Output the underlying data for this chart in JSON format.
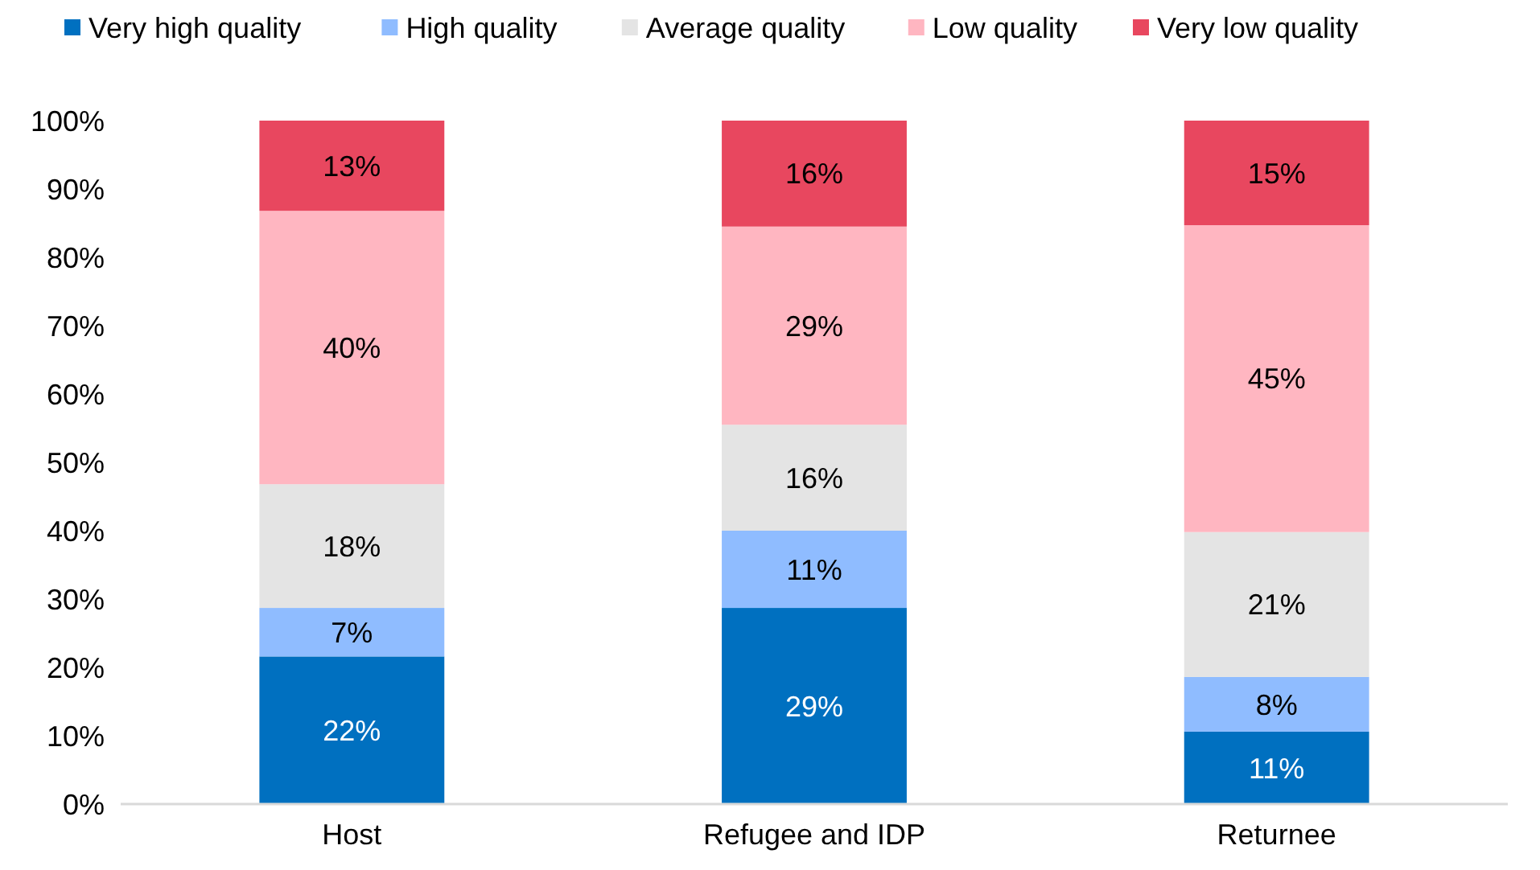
{
  "chart_data": {
    "type": "bar",
    "stacked": true,
    "legend": "top",
    "grid": false,
    "categories": [
      "Host",
      "Refugee and IDP",
      "Returnee"
    ],
    "ylim": [
      0,
      100
    ],
    "yticks": [
      {
        "value": 0,
        "label": "0%"
      },
      {
        "value": 10,
        "label": "10%"
      },
      {
        "value": 20,
        "label": "20%"
      },
      {
        "value": 30,
        "label": "30%"
      },
      {
        "value": 40,
        "label": "40%"
      },
      {
        "value": 50,
        "label": "50%"
      },
      {
        "value": 60,
        "label": "60%"
      },
      {
        "value": 70,
        "label": "70%"
      },
      {
        "value": 80,
        "label": "80%"
      },
      {
        "value": 90,
        "label": "90%"
      },
      {
        "value": 100,
        "label": "100%"
      }
    ],
    "series": [
      {
        "name": "Very high quality",
        "color": "#0070c0",
        "values": [
          21.6,
          28.7,
          10.6
        ],
        "value_labels": [
          "22%",
          "29%",
          "11%"
        ]
      },
      {
        "name": "High quality",
        "color": "#8fbcff",
        "values": [
          7.1,
          11.3,
          8.0
        ],
        "value_labels": [
          "7%",
          "11%",
          "8%"
        ]
      },
      {
        "name": "Average quality",
        "color": "#e4e4e4",
        "values": [
          18.1,
          15.5,
          21.2
        ],
        "value_labels": [
          "18%",
          "16%",
          "21%"
        ]
      },
      {
        "name": "Low quality",
        "color": "#ffb6c1",
        "values": [
          40,
          29.0,
          44.9
        ],
        "value_labels": [
          "40%",
          "29%",
          "45%"
        ]
      },
      {
        "name": "Very low quality",
        "color": "#e8475f",
        "values": [
          13.2,
          15.5,
          15.3
        ],
        "value_labels": [
          "13%",
          "16%",
          "15%"
        ]
      }
    ]
  }
}
